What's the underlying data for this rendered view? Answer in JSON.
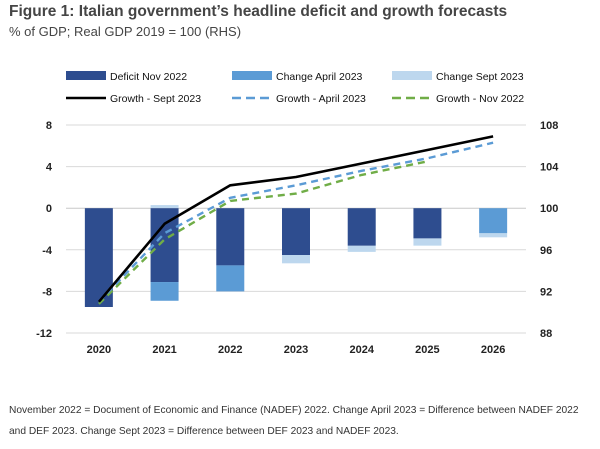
{
  "title": "Figure 1: Italian government’s headline deficit and growth forecasts",
  "subtitle": "% of GDP; Real GDP 2019 = 100 (RHS)",
  "note": "November 2022 = Document of Economic and Finance (NADEF) 2022. Change April 2023 = Difference between NADEF 2022 and DEF 2023. Change Sept 2023 = Difference between DEF 2023 and NADEF 2023.",
  "chart_data": {
    "type": "bar",
    "categories": [
      "2020",
      "2021",
      "2022",
      "2023",
      "2024",
      "2025",
      "2026"
    ],
    "y_left": {
      "range": [
        -12,
        8
      ],
      "ticks": [
        "8",
        "4",
        "0",
        "-4",
        "-8",
        "-12"
      ]
    },
    "y_right": {
      "range": [
        88,
        108
      ],
      "ticks": [
        "108",
        "104",
        "100",
        "96",
        "92",
        "88"
      ]
    },
    "grid": "horizontal",
    "legend_position": "top",
    "bar_series": [
      {
        "name": "Deficit Nov 2022",
        "color": "#2e4d8f",
        "ranges": [
          [
            0,
            -9.5
          ],
          [
            0,
            -7.1
          ],
          [
            0,
            -5.5
          ],
          [
            0,
            -4.5
          ],
          [
            0,
            -3.6
          ],
          [
            0,
            -2.9
          ],
          [
            null,
            null
          ]
        ]
      },
      {
        "name": "Change April 2023",
        "color": "#5b9bd5",
        "ranges": [
          [
            null,
            null
          ],
          [
            -7.1,
            -8.9
          ],
          [
            -5.5,
            -8.0
          ],
          [
            null,
            null
          ],
          [
            null,
            null
          ],
          [
            null,
            null
          ],
          [
            0,
            -2.4
          ]
        ]
      },
      {
        "name": "Change Sept 2023",
        "color": "#bdd7ee",
        "ranges": [
          [
            null,
            null
          ],
          [
            0,
            0.3
          ],
          [
            null,
            null
          ],
          [
            -4.5,
            -5.3
          ],
          [
            -3.6,
            -4.2
          ],
          [
            -2.9,
            -3.6
          ],
          [
            -2.4,
            -2.8
          ]
        ]
      }
    ],
    "line_series": [
      {
        "name": "Growth - Sept 2023",
        "color": "#000000",
        "dash": "solid",
        "values": [
          91.0,
          98.5,
          102.2,
          103.0,
          104.3,
          105.6,
          106.9
        ]
      },
      {
        "name": "Growth - April 2023",
        "color": "#5b9bd5",
        "dash": "dashed",
        "values": [
          91.0,
          97.6,
          101.0,
          102.2,
          103.6,
          104.8,
          106.3
        ]
      },
      {
        "name": "Growth - Nov 2022",
        "color": "#70ad47",
        "dash": "dashed",
        "values": [
          90.8,
          97.0,
          100.7,
          101.4,
          103.2,
          104.5,
          null
        ]
      }
    ]
  }
}
